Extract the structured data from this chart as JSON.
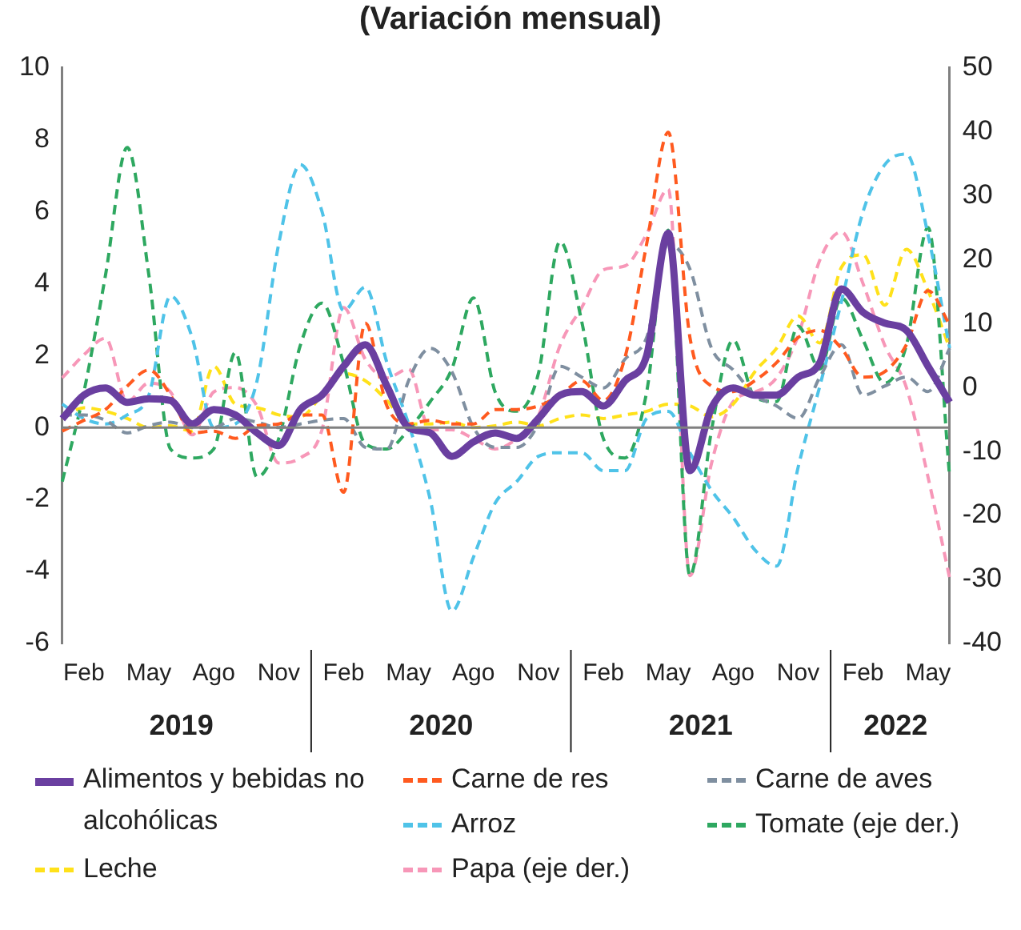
{
  "chart_data": {
    "type": "line",
    "title": "(Variación mensual)",
    "categories": [
      null,
      "Feb",
      null,
      null,
      "May",
      null,
      null,
      "Ago",
      null,
      null,
      "Nov",
      null,
      null,
      "Feb",
      null,
      null,
      "May",
      null,
      null,
      "Ago",
      null,
      null,
      "Nov",
      null,
      null,
      "Feb",
      null,
      null,
      "May",
      null,
      null,
      "Ago",
      null,
      null,
      "Nov",
      null,
      null,
      "Feb",
      null,
      null,
      "May",
      null
    ],
    "annotations": [
      "2019",
      "2020",
      "2021",
      "2022"
    ],
    "ylim": [
      -6,
      10
    ],
    "yticks": [
      -6,
      -4,
      -2,
      0,
      2,
      4,
      6,
      8,
      10
    ],
    "y2lim": [
      -40,
      50
    ],
    "y2ticks": [
      -40,
      -30,
      -20,
      -10,
      0,
      10,
      20,
      30,
      40,
      50
    ],
    "grid": false,
    "legend": "bottom",
    "marker": "none",
    "ref_lines": [
      {
        "axis": "y",
        "value": 0,
        "color": "#808080"
      }
    ],
    "series": [
      {
        "name": "Alimentos y bebidas no alcohólicas",
        "color": "#6a3fa0",
        "line_style": "solid",
        "values": [
          0.24,
          0.9,
          1.1,
          0.7,
          0.8,
          0.75,
          0.1,
          0.5,
          0.35,
          -0.15,
          -0.5,
          0.5,
          0.9,
          1.7,
          2.3,
          1.15,
          0,
          -0.15,
          -0.8,
          -0.4,
          -0.15,
          -0.3,
          0.25,
          0.9,
          1.0,
          0.6,
          1.3,
          2.0,
          5.4,
          -1.2,
          0.55,
          1.1,
          0.9,
          0.9,
          1.4,
          1.8,
          3.85,
          3.2,
          2.9,
          2.7,
          1.7,
          0.7
        ]
      },
      {
        "name": "Carne de res",
        "color": "#ff5a1f",
        "line_style": "dashed",
        "values": [
          -0.1,
          0.2,
          0.5,
          1.15,
          1.6,
          0.9,
          -0.15,
          -0.1,
          -0.3,
          0.05,
          0.1,
          0.35,
          0.35,
          -1.8,
          2.9,
          0.6,
          0.1,
          0.2,
          0.1,
          0.1,
          0.5,
          0.5,
          0.6,
          0.9,
          1.3,
          0.75,
          1.95,
          5.1,
          8.2,
          2.5,
          1.15,
          1.0,
          1.3,
          1.8,
          2.5,
          2.7,
          2.2,
          1.4,
          1.55,
          2.3,
          3.8,
          2.85
        ]
      },
      {
        "name": "Carne de aves",
        "color": "#7f8fa0",
        "line_style": "dashed",
        "values": [
          0.35,
          0.35,
          0.2,
          -0.15,
          0.05,
          0.15,
          0,
          0,
          0.25,
          0.15,
          0,
          0.1,
          0.2,
          0.25,
          -0.55,
          -0.6,
          1.3,
          2.2,
          1.55,
          0,
          -0.55,
          -0.55,
          0.1,
          1.7,
          1.4,
          1.1,
          1.9,
          2.5,
          5.1,
          4.4,
          2.2,
          1.6,
          0.9,
          0.6,
          0.25,
          1.4,
          2.3,
          0.9,
          1.15,
          1.4,
          1.0,
          2.2
        ]
      },
      {
        "name": "Arroz",
        "color": "#4fc3e8",
        "line_style": "dashed",
        "values": [
          0.65,
          0.25,
          0.1,
          0.35,
          0.9,
          3.65,
          2.5,
          0,
          0.1,
          1.3,
          5.1,
          7.3,
          6.0,
          3.25,
          3.9,
          1.8,
          0.1,
          -2.0,
          -5.1,
          -3.6,
          -2.1,
          -1.5,
          -0.8,
          -0.7,
          -0.7,
          -1.2,
          -1.2,
          0.25,
          0.45,
          -0.7,
          -1.75,
          -2.5,
          -3.4,
          -3.85,
          -1.1,
          1.15,
          3.5,
          6.0,
          7.3,
          7.6,
          5.35,
          2.2
        ]
      },
      {
        "name": "Tomate (eje der.)",
        "color": "#2ea860",
        "line_style": "dashed",
        "axis": "y2",
        "values": [
          -14.7,
          -0.7,
          17.6,
          37.5,
          17.6,
          -9.6,
          -11,
          -9.6,
          5.5,
          -14,
          -8,
          6.6,
          13.2,
          3.7,
          -8.8,
          -9.6,
          -6.6,
          -2.2,
          2.9,
          14.0,
          -0.7,
          -3.7,
          2.2,
          22.8,
          10.3,
          -8,
          -11,
          -0.7,
          24.6,
          -29.4,
          -6.6,
          7.4,
          -1.5,
          -2.2,
          9.6,
          2.9,
          14.0,
          7.4,
          0.7,
          6.6,
          25,
          -14
        ]
      },
      {
        "name": "Leche",
        "color": "#ffe11a",
        "line_style": "dashed",
        "values": [
          0.25,
          0.55,
          0.45,
          0.25,
          0,
          0.05,
          -0.1,
          1.7,
          0.65,
          0.55,
          0.35,
          0.3,
          0.9,
          1.5,
          1.3,
          0.75,
          0.1,
          0.1,
          0.15,
          0,
          0.05,
          0.15,
          0.05,
          0.25,
          0.35,
          0.25,
          0.35,
          0.45,
          0.65,
          0.6,
          0.3,
          0.65,
          1.55,
          2.2,
          3.1,
          2.35,
          4.45,
          4.8,
          3.4,
          4.95,
          3.8,
          2.2
        ]
      },
      {
        "name": "Papa (eje der.)",
        "color": "#f797b8",
        "line_style": "dashed",
        "axis": "y2",
        "values": [
          1.5,
          5.1,
          7.7,
          -2.2,
          0.7,
          -0.7,
          -7.4,
          -0.7,
          0,
          -2.9,
          -11.8,
          -11,
          -6.6,
          12.5,
          4.4,
          1.5,
          2.9,
          -6.6,
          -6.6,
          -8,
          -9.6,
          -8,
          -4.4,
          6.6,
          12.5,
          18.4,
          19,
          24,
          31,
          -29.4,
          -11.8,
          -2.2,
          -0.7,
          1.5,
          8.1,
          19.9,
          24.3,
          16.2,
          6.6,
          0,
          -14,
          -29.8
        ]
      }
    ]
  }
}
